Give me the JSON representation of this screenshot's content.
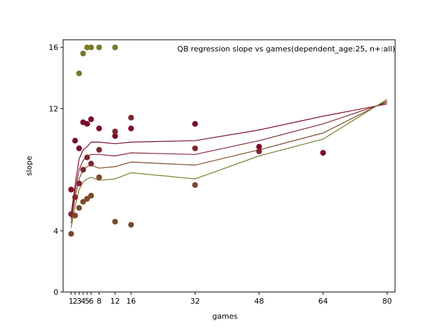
{
  "chart_data": {
    "type": "scatter",
    "title": "QB regression slope vs games(dependent_age:25, n+:all)",
    "xlabel": "games",
    "ylabel": "slope",
    "xlim": [
      -1,
      82
    ],
    "ylim": [
      0,
      16.5
    ],
    "xticks": [
      1,
      2,
      3,
      4,
      5,
      6,
      8,
      12,
      16,
      32,
      48,
      64,
      80
    ],
    "xtick_labels": [
      "1",
      "2",
      "3",
      "4",
      "5",
      "6",
      "8",
      "12",
      "16",
      "32",
      "48",
      "64",
      "80"
    ],
    "yticks": [
      0,
      4,
      12,
      16
    ],
    "ytick_labels": [
      "0",
      "4",
      "12",
      "16"
    ],
    "grid": false,
    "series": [
      {
        "color": "#7b0a2a",
        "points": [
          [
            1,
            6.7
          ],
          [
            2,
            9.9
          ],
          [
            3,
            9.4
          ],
          [
            4,
            11.1
          ],
          [
            5,
            11.0
          ],
          [
            6,
            11.3
          ],
          [
            8,
            10.7
          ],
          [
            12,
            10.2
          ],
          [
            16,
            10.7
          ],
          [
            32,
            11.0
          ],
          [
            48,
            9.5
          ],
          [
            64,
            9.1
          ]
        ],
        "line_x": [
          1,
          2,
          3,
          4,
          5,
          6,
          8,
          12,
          16,
          32,
          48,
          64,
          80
        ],
        "line_y": [
          5.1,
          7.0,
          8.7,
          9.3,
          9.5,
          9.8,
          9.8,
          9.7,
          9.8,
          9.9,
          10.6,
          11.5,
          12.3
        ]
      },
      {
        "color": "#7f2531",
        "points": [
          [
            1,
            5.1
          ],
          [
            2,
            6.2
          ],
          [
            3,
            7.1
          ],
          [
            4,
            8.0
          ],
          [
            5,
            8.8
          ],
          [
            6,
            8.4
          ],
          [
            8,
            9.3
          ],
          [
            12,
            10.5
          ],
          [
            16,
            11.4
          ],
          [
            32,
            9.4
          ],
          [
            48,
            9.2
          ]
        ],
        "line_x": [
          1,
          2,
          3,
          4,
          5,
          6,
          8,
          12,
          16,
          32,
          48,
          64,
          80
        ],
        "line_y": [
          4.8,
          6.6,
          8.0,
          8.6,
          8.9,
          9.0,
          9.0,
          8.9,
          9.1,
          9.0,
          9.9,
          11.0,
          12.4
        ]
      },
      {
        "color": "#7b4a28",
        "points": [
          [
            1,
            3.8
          ],
          [
            2,
            5.0
          ],
          [
            3,
            5.5
          ],
          [
            4,
            5.9
          ],
          [
            5,
            6.1
          ],
          [
            6,
            6.3
          ],
          [
            8,
            7.5
          ],
          [
            12,
            4.6
          ],
          [
            16,
            4.4
          ],
          [
            32,
            7.0
          ]
        ],
        "line_x": [
          1,
          2,
          3,
          4,
          5,
          6,
          8,
          12,
          16,
          32,
          48,
          64,
          80
        ],
        "line_y": [
          4.5,
          6.2,
          7.4,
          8.0,
          8.2,
          8.3,
          8.1,
          8.2,
          8.5,
          8.3,
          9.3,
          10.4,
          12.5
        ]
      },
      {
        "color": "#7a7a2a",
        "points": [
          [
            3,
            14.3
          ],
          [
            4,
            15.6
          ],
          [
            5,
            16.0
          ],
          [
            6,
            16.0
          ],
          [
            8,
            16.0
          ],
          [
            12,
            16.0
          ]
        ],
        "line_x": [
          1,
          2,
          3,
          4,
          5,
          6,
          8,
          12,
          16,
          32,
          48,
          64,
          80
        ],
        "line_y": [
          4.2,
          5.6,
          6.7,
          7.2,
          7.4,
          7.5,
          7.3,
          7.4,
          7.8,
          7.4,
          8.9,
          10.0,
          12.6
        ]
      }
    ]
  }
}
